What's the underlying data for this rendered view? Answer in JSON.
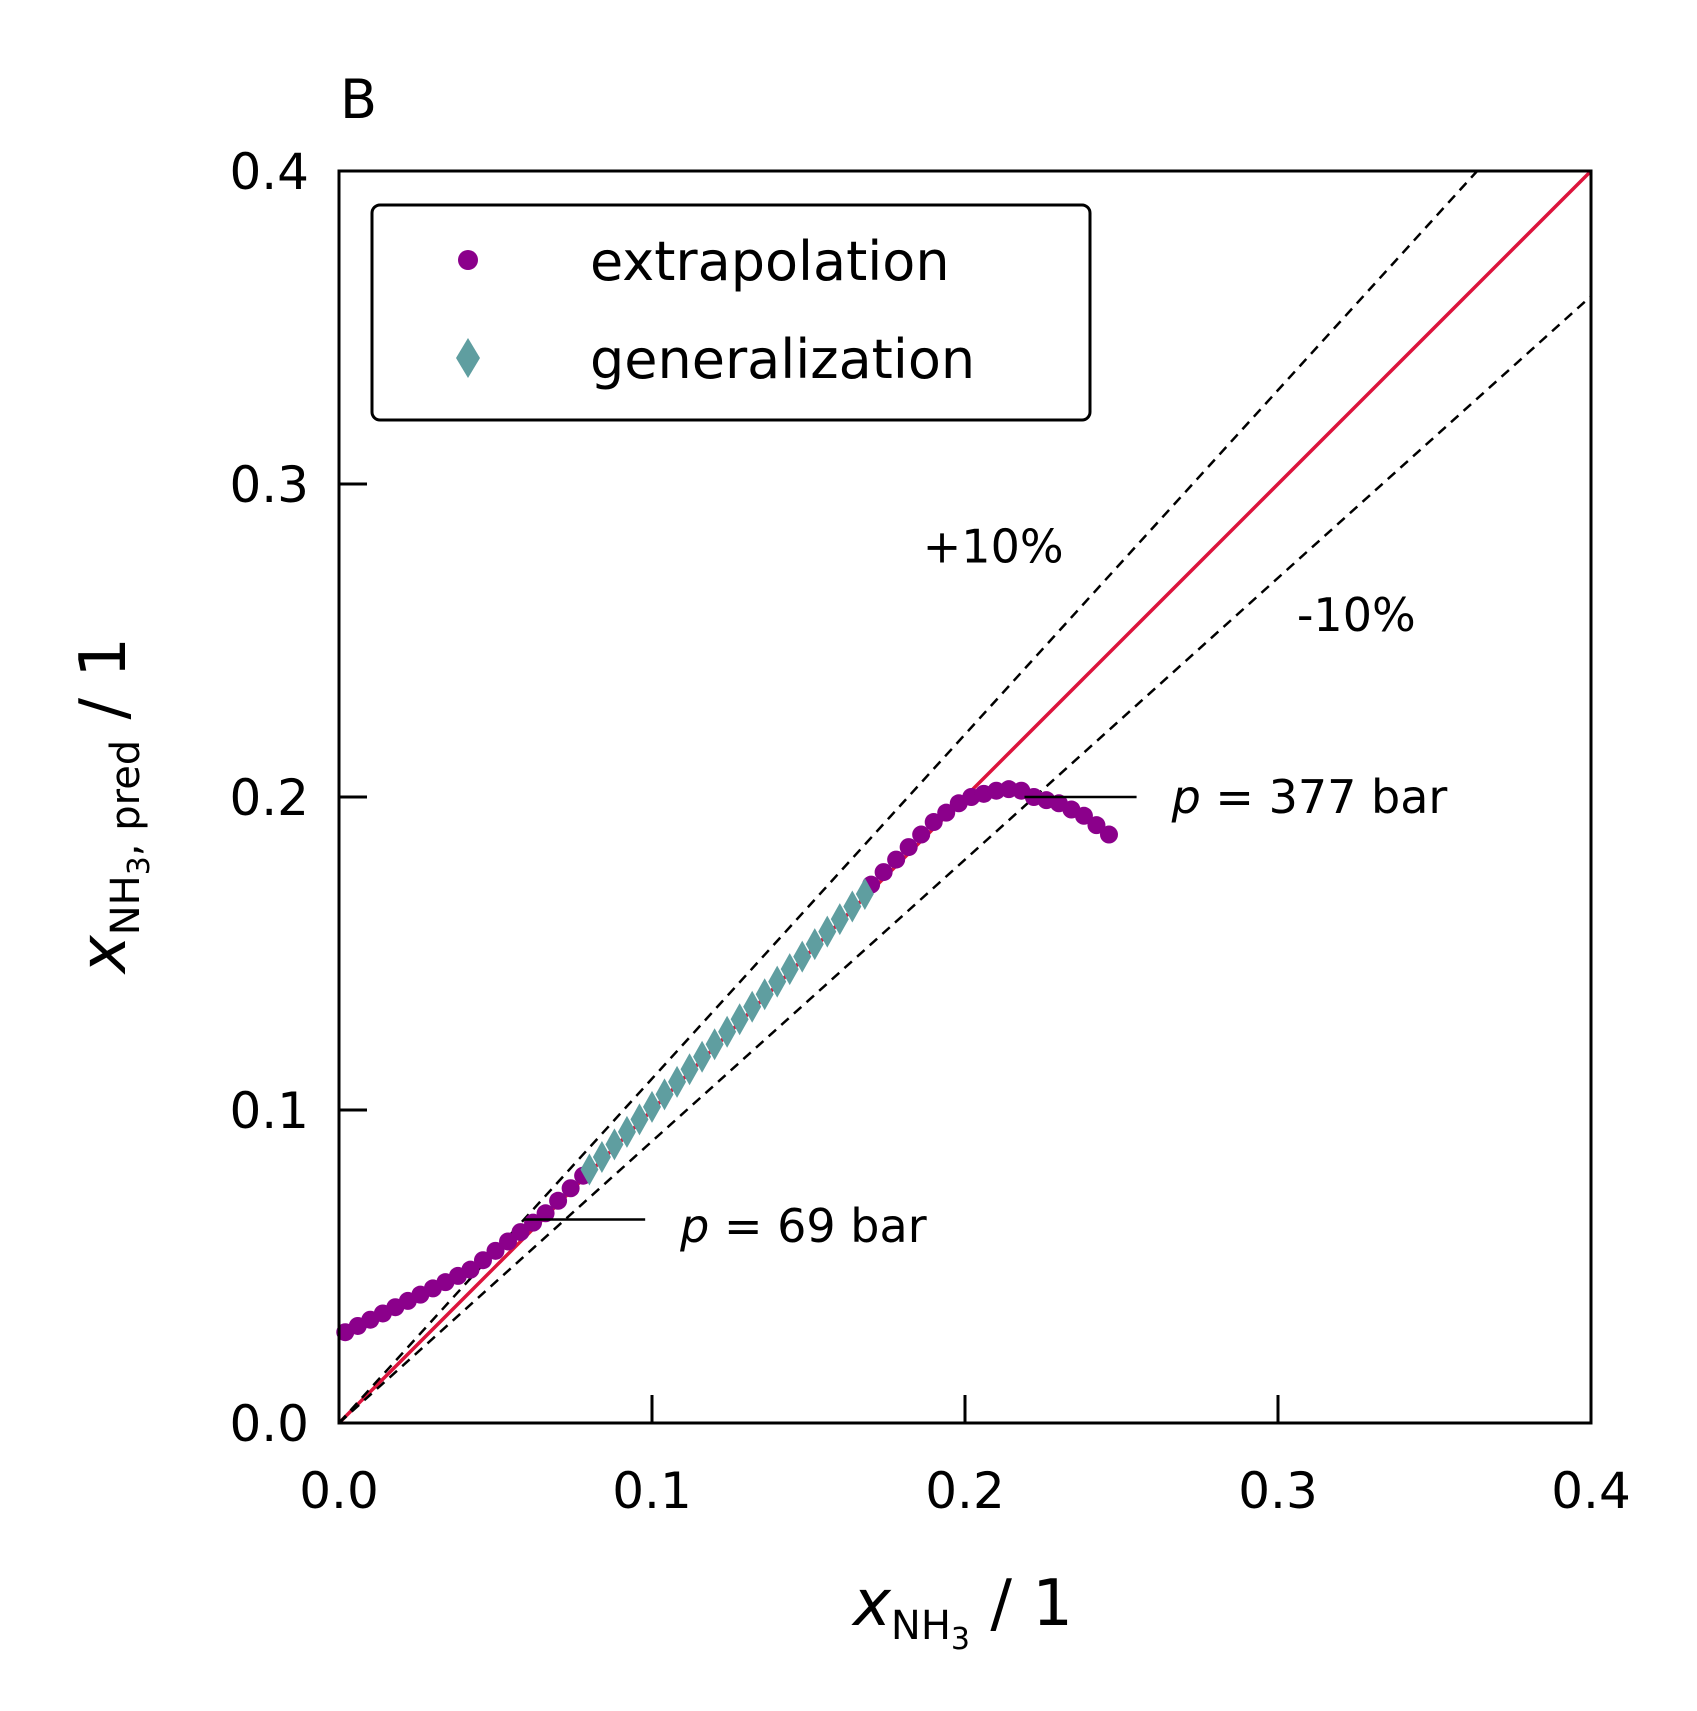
{
  "panel_label": "B",
  "chart_data": {
    "type": "scatter",
    "xlim": [
      0.0,
      0.4
    ],
    "ylim": [
      0.0,
      0.4
    ],
    "x_ticks": [
      0.0,
      0.1,
      0.2,
      0.3,
      0.4
    ],
    "y_ticks": [
      0.0,
      0.1,
      0.2,
      0.3,
      0.4
    ],
    "x_tick_labels": [
      "0.0",
      "0.1",
      "0.2",
      "0.3",
      "0.4"
    ],
    "y_tick_labels": [
      "0.0",
      "0.1",
      "0.2",
      "0.3",
      "0.4"
    ],
    "xlabel": {
      "symbol": "x",
      "subscript": "NH",
      "subsub": "3",
      "unit": " / 1"
    },
    "ylabel": {
      "symbol": "x",
      "subscript": "NH",
      "subsub": "3",
      "subscript_tail": ", pred",
      "unit": " / 1"
    },
    "grid": false,
    "legend": {
      "placement": "top-left",
      "entries": [
        {
          "label": "extrapolation",
          "marker": "circle",
          "color": "#8B008B"
        },
        {
          "label": "generalization",
          "marker": "thin-diamond",
          "color": "#5F9EA0"
        }
      ]
    },
    "reference_lines": [
      {
        "kind": "parity",
        "slope": 1.0,
        "color": "#DC143C",
        "style": "solid"
      },
      {
        "kind": "plus",
        "slope": 1.1,
        "color": "#000000",
        "style": "dashed",
        "label": "+10%",
        "label_pos": [
          0.209,
          0.275
        ]
      },
      {
        "kind": "minus",
        "slope": 0.9,
        "color": "#000000",
        "style": "dashed",
        "label": "-10%",
        "label_pos": [
          0.325,
          0.253
        ]
      }
    ],
    "annotations": [
      {
        "var": "p",
        "text": " = 69 bar",
        "point": [
          0.059,
          0.065
        ],
        "text_pos": [
          0.109,
          0.063
        ]
      },
      {
        "var": "p",
        "text": " = 377 bar",
        "point": [
          0.219,
          0.2
        ],
        "text_pos": [
          0.266,
          0.2
        ]
      }
    ],
    "series": [
      {
        "name": "extrapolation",
        "marker": "circle",
        "color": "#8B008B",
        "x": [
          0.002,
          0.006,
          0.01,
          0.014,
          0.018,
          0.022,
          0.026,
          0.03,
          0.034,
          0.038,
          0.042,
          0.046,
          0.05,
          0.054,
          0.058,
          0.062,
          0.066,
          0.07,
          0.074,
          0.078,
          0.17,
          0.174,
          0.178,
          0.182,
          0.186,
          0.19,
          0.194,
          0.198,
          0.202,
          0.206,
          0.21,
          0.214,
          0.218,
          0.222,
          0.226,
          0.23,
          0.234,
          0.238,
          0.242,
          0.246
        ],
        "y": [
          0.029,
          0.031,
          0.033,
          0.035,
          0.037,
          0.039,
          0.041,
          0.043,
          0.045,
          0.047,
          0.049,
          0.052,
          0.055,
          0.058,
          0.061,
          0.064,
          0.067,
          0.071,
          0.075,
          0.079,
          0.172,
          0.176,
          0.18,
          0.184,
          0.188,
          0.192,
          0.195,
          0.198,
          0.2,
          0.201,
          0.202,
          0.2025,
          0.202,
          0.2,
          0.199,
          0.198,
          0.196,
          0.194,
          0.191,
          0.188
        ]
      },
      {
        "name": "generalization",
        "marker": "thin-diamond",
        "color": "#5F9EA0",
        "x": [
          0.08,
          0.084,
          0.088,
          0.092,
          0.096,
          0.1,
          0.104,
          0.108,
          0.112,
          0.116,
          0.12,
          0.124,
          0.128,
          0.132,
          0.136,
          0.14,
          0.144,
          0.148,
          0.152,
          0.156,
          0.16,
          0.164,
          0.168
        ],
        "y": [
          0.081,
          0.085,
          0.089,
          0.093,
          0.097,
          0.101,
          0.105,
          0.109,
          0.113,
          0.117,
          0.121,
          0.125,
          0.129,
          0.133,
          0.137,
          0.141,
          0.145,
          0.149,
          0.153,
          0.157,
          0.161,
          0.165,
          0.169
        ]
      }
    ]
  }
}
